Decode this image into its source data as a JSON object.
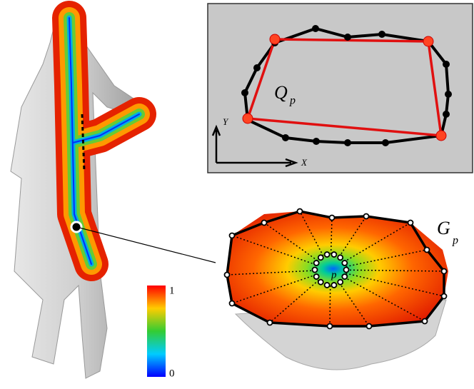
{
  "inset": {
    "label": "Q",
    "label_sub": "p",
    "axis_y": "Y",
    "axis_x": "X"
  },
  "detail": {
    "label": "G",
    "label_sub": "p",
    "center_label": "p"
  },
  "colorbar": {
    "max_label": "1",
    "min_label": "0"
  }
}
